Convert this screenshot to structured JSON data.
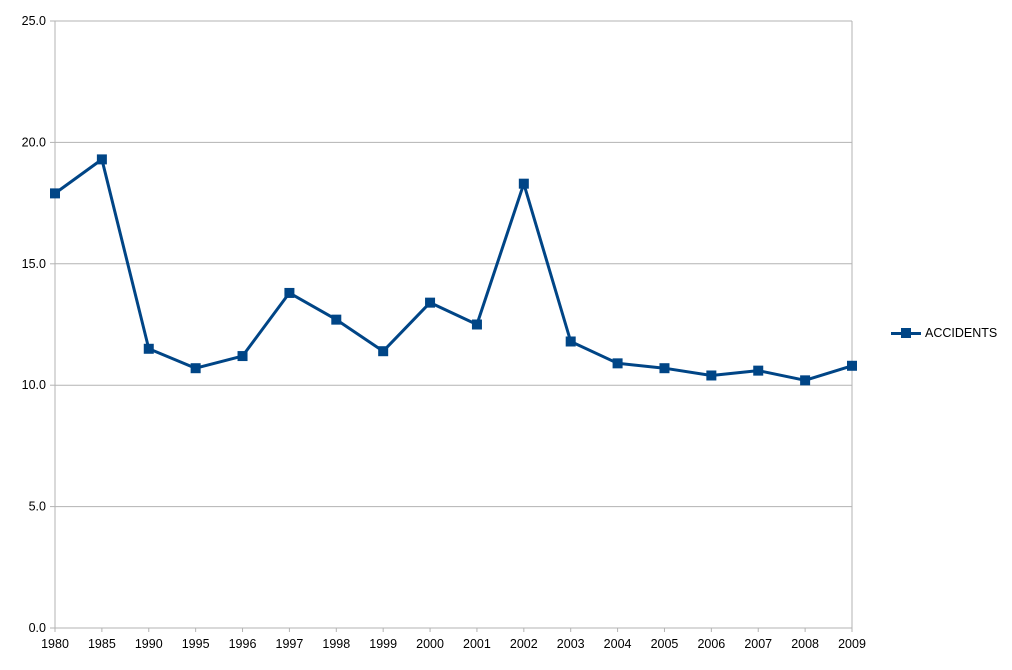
{
  "chart_data": {
    "type": "line",
    "categories": [
      "1980",
      "1985",
      "1990",
      "1995",
      "1996",
      "1997",
      "1998",
      "1999",
      "2000",
      "2001",
      "2002",
      "2003",
      "2004",
      "2005",
      "2006",
      "2007",
      "2008",
      "2009"
    ],
    "series": [
      {
        "name": "ACCIDENTS",
        "values": [
          17.9,
          19.3,
          11.5,
          10.7,
          11.2,
          13.8,
          12.7,
          11.4,
          13.4,
          12.5,
          18.3,
          11.8,
          10.9,
          10.7,
          10.4,
          10.6,
          10.2,
          10.8
        ]
      }
    ],
    "y_ticks": [
      "0.0",
      "5.0",
      "10.0",
      "15.0",
      "20.0",
      "25.0"
    ],
    "ylim": [
      0,
      25
    ],
    "grid": true,
    "legend_position": "right",
    "title": "",
    "xlabel": "",
    "ylabel": "",
    "colors": {
      "series": "#004586",
      "grid": "#b3b3b3",
      "axis": "#b3b3b3"
    }
  }
}
